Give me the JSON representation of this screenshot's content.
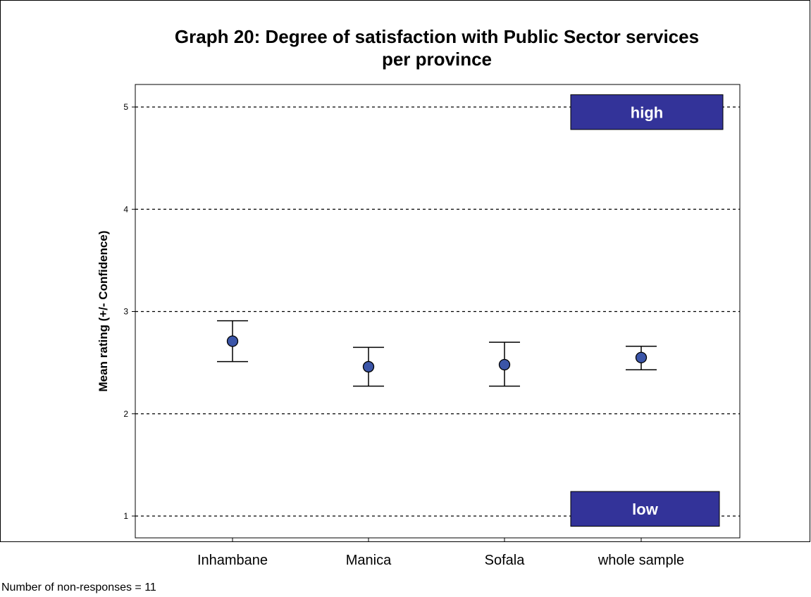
{
  "title_line1": "Graph 20: Degree of satisfaction with Public Sector services",
  "title_line2": "per province",
  "footnote": "Number of non-responses = 11",
  "colors": {
    "marker": "#3b55a8",
    "region_box": "#333399",
    "axis": "#000000"
  },
  "chart_data": {
    "type": "scatter",
    "title": "Graph 20: Degree of satisfaction with Public Sector services per province",
    "xlabel": "",
    "ylabel": "Mean rating (+/- Confidence)",
    "ylim": [
      0.8,
      5.25
    ],
    "yticks": [
      1,
      2,
      3,
      4,
      5
    ],
    "grid": "horizontal-dashed",
    "categories": [
      "Inhambane",
      "Manica",
      "Sofala",
      "whole sample"
    ],
    "series": [
      {
        "mean": [
          2.71,
          2.46,
          2.48,
          2.55
        ],
        "lower": [
          2.51,
          2.27,
          2.27,
          2.43
        ],
        "upper": [
          2.91,
          2.65,
          2.7,
          2.66
        ]
      }
    ],
    "region_labels": [
      {
        "text": "high",
        "y_top": 5.12,
        "y_bottom": 4.78
      },
      {
        "text": "low",
        "y_top": 1.24,
        "y_bottom": 0.9
      }
    ]
  }
}
